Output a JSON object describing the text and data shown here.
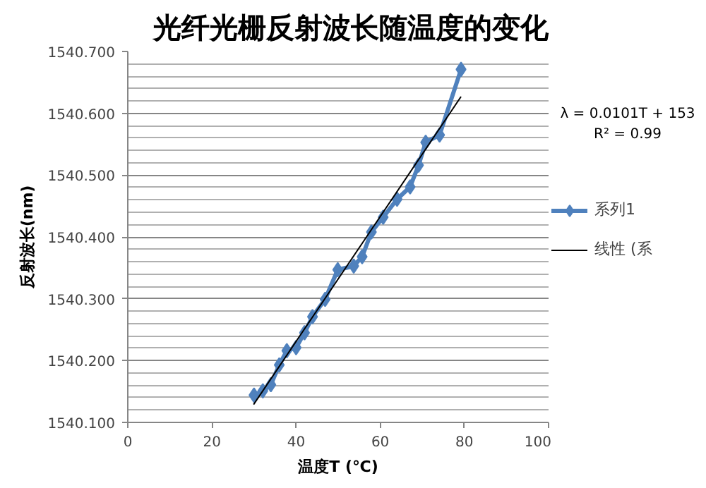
{
  "chart_data": {
    "type": "line",
    "title": "光纤光栅反射波长随温度的变化",
    "xlabel": "温度T (℃)",
    "ylabel": "反射波长(nm)",
    "annotations": [
      "λ = 0.0101T + 153",
      "R² = 0.99"
    ],
    "xlim": [
      0,
      100
    ],
    "xticks": [
      0,
      20,
      40,
      60,
      80,
      100
    ],
    "ylim": [
      1540.1,
      1540.7
    ],
    "yticks": [
      {
        "value": 1540.1,
        "label": "1540.100"
      },
      {
        "value": 1540.2,
        "label": "1540.200"
      },
      {
        "value": 1540.3,
        "label": "1540.300"
      },
      {
        "value": 1540.4,
        "label": "1540.400"
      },
      {
        "value": 1540.5,
        "label": "1540.500"
      },
      {
        "value": 1540.6,
        "label": "1540.600"
      },
      {
        "value": 1540.7,
        "label": "1540.700"
      }
    ],
    "grid": "y",
    "legend": "right",
    "marker": "diamond",
    "line_style": "solid",
    "series": [
      {
        "name": "系列1",
        "color": "#4f81bd",
        "x": [
          30,
          32.1,
          34,
          36,
          37.8,
          40,
          42,
          43.9,
          46.9,
          49.9,
          53.7,
          55.7,
          57.9,
          60.7,
          64,
          67.1,
          69.1,
          70.8,
          74.1,
          79.2
        ],
        "values": [
          1540.144,
          1540.151,
          1540.161,
          1540.193,
          1540.216,
          1540.221,
          1540.245,
          1540.271,
          1540.299,
          1540.347,
          1540.353,
          1540.368,
          1540.408,
          1540.432,
          1540.461,
          1540.481,
          1540.516,
          1540.553,
          1540.565,
          1540.671
        ]
      },
      {
        "name": "线性 (系",
        "color": "#000000",
        "type": "line",
        "marker": "none",
        "x": [
          29.9,
          79.2
        ],
        "values": [
          1540.129,
          1540.627
        ]
      }
    ]
  }
}
